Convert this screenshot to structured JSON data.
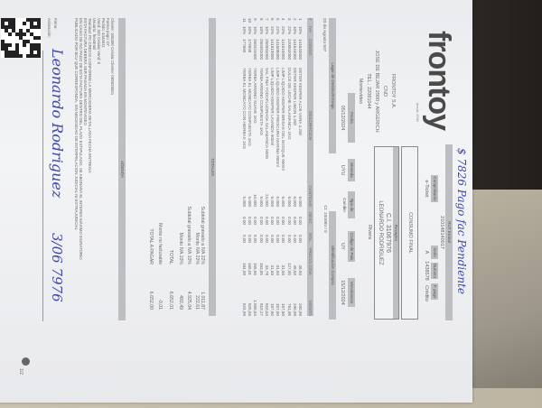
{
  "issuer": {
    "logo": "frontoy",
    "logo_tagline": "desde 1960",
    "name": "FRONTOY S.A.",
    "type": "CND",
    "address": "JOSE DE BEJAR 2900 y ARGERICH",
    "phone": "TEL.: 22081044",
    "city": "Montevideo"
  },
  "handwritten_note": "$ 7826 Pago fac Pendiente",
  "rut": {
    "label": "RUT Emisor",
    "value": "210148140017"
  },
  "voucher": {
    "headers": [
      "Comprobante",
      "Serie",
      "Numero",
      "F. pago"
    ],
    "values": [
      "e-Ticket",
      "A",
      "1438578",
      "Crédito"
    ]
  },
  "consumo": "CONSUMO FINAL",
  "receptor": {
    "label": "Receptor",
    "ci": "C.I. 31067976",
    "name": "LEONARDO RODRIGUEZ",
    "city": "Rivera"
  },
  "meta": {
    "headers": [
      "Fecha",
      "Moneda",
      "Tipo de Cambio",
      "Codigo de Pais",
      "Vencimiento"
    ],
    "values": [
      "05/12/2024",
      "UYU",
      "",
      "UY",
      "15/12/2024"
    ]
  },
  "destino": {
    "label": "Lugar de Destino/Entrega",
    "value": "20 de Agosto 507"
  },
  "ident": {
    "label": "Identificación Compra",
    "value": "CI: 100080 / 0"
  },
  "table": {
    "headers": [
      "#",
      "IVA",
      "CODIGO",
      "DESCRIPCION",
      "CANTIDAD",
      "DESC.",
      "RGL.",
      "PRECIO C/IVA",
      "MONTO"
    ],
    "rows": [
      [
        "1",
        "10%",
        "141640000",
        "DETER KEEPER ALOE VERA 1.25lt",
        "6.000",
        "0.00",
        "0.00",
        "48,50",
        "290,99"
      ],
      [
        "2",
        "10%",
        "141644000",
        "DETER KEEPER LIMON 1.25lt",
        "6.000",
        "0.00",
        "0.00",
        "48,50",
        "290,99"
      ],
      [
        "3",
        "22%",
        "220002000",
        "DULCE DE LECHE SALAMANCA 1KG",
        "6.000",
        "0.00",
        "0.00",
        "127,00",
        "761,98"
      ],
      [
        "4",
        "22%",
        "141610000",
        "LIMP LIQUIDO KEEPER BRISAS DEL BOSQUE 900ml",
        "5.000",
        "0.00",
        "0.00",
        "31,50",
        "157,50"
      ],
      [
        "5",
        "22%",
        "141608000",
        "LIMP LIQUIDO KEEPER FRESCURA MARINA 900ml",
        "5.000",
        "0.00",
        "0.00",
        "31,50",
        "157,50"
      ],
      [
        "6",
        "22%",
        "141919000",
        "LIMP LIQUIDO KEEPER LAVANDA 900ml",
        "5.000",
        "0.00",
        "0.00",
        "31,50",
        "157,50"
      ],
      [
        "7",
        "10%",
        "250991000",
        "SAL FINA YODOFLUORADA SALAMANCA 500G",
        "24.000",
        "0.00",
        "0.00",
        "33,78",
        "810,63"
      ],
      [
        "8",
        "10%",
        "250481000",
        "YERBA ARMINO COMPUESTA 1KG",
        "5.000",
        "0.00",
        "0.00",
        "163,85",
        "819,27"
      ],
      [
        "9",
        "10%",
        "250421000",
        "YERBA ARMINO SUAVE 1KG",
        "10.000",
        "0.00",
        "0.00",
        "155,56",
        "1.555,64"
      ],
      [
        "10",
        "10%",
        "179948",
        "YERBA EL MONCAYO COMPUESTA 1KG",
        "5.000",
        "0.00",
        "0.00",
        "165,01",
        "825,03"
      ],
      [
        "11",
        "10%",
        "177660",
        "YERBA EL MONCAYO CON HIERBAS 1KG",
        "5.000",
        "0.00",
        "0.00",
        "164,99",
        "824,99"
      ]
    ]
  },
  "totales_label": "TOTALES",
  "totals": [
    {
      "label": "Subtotal gravado a IVA 22%",
      "value": "1.011,87"
    },
    {
      "label": "Monto IVA 22%",
      "value": "222,61"
    },
    {
      "label": "Subtotal gravado a IVA 10%",
      "value": "4.925,04"
    },
    {
      "label": "Monto IVA 10%",
      "value": "492,49"
    },
    {
      "label": "TOTAL",
      "value": "6.652,01"
    },
    {
      "label": "Monto no facturable",
      "value": "-0,01"
    },
    {
      "label": "TOTAL A PAGAR",
      "value": "6.652,00"
    }
  ],
  "adenda_label": "ADENDA",
  "adenda": [
    "Cliente: 100300        Celular Cliente: 099929651",
    "Forma pago: 07",
    "Pedido: 4444611",
    "Vend: 332  Celular Vend: 0",
    "Usuario: fnextmail",
    "Terminal: PC-CRECSI CONFORME LA MERCADERIA DETALLADA FECHA ENTREGA:",
    "ESTA FACTURA DEBERÁ SER PAGADA EN MONTEVIDEO",
    "EN CASO DE NO PAGO DE ESTA FACTURA DENTRO DEL PLAZO ESTIPULADO, SE ABONARÁ EL INTERES MÁXIMO MORATORIO",
    "PUBLICADO POR BCU QUE CORRESPONDA, SIN NECESIDAD DE INTERPELACIÓN JUDICIAL NI EXTRAJUDICIAL"
  ],
  "firma_label": "Firma:",
  "aclaracion_label": "Aclaración:",
  "signature": "Leonardo Rodriguez",
  "signature_date": "3/06 7976",
  "page": "1/2",
  "colors": {
    "ink": "#3d4aa8",
    "band": "#bcbec2"
  }
}
